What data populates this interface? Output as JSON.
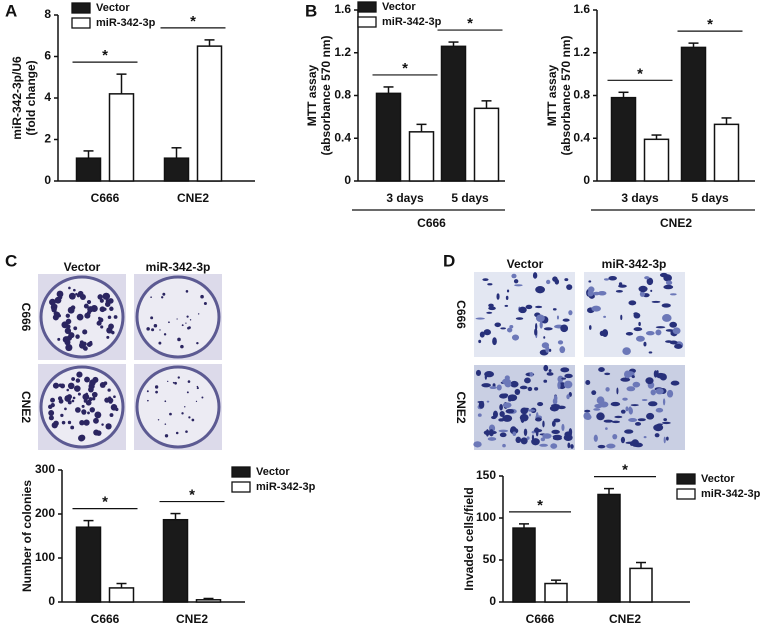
{
  "chart_data": [
    {
      "type": "bar",
      "panel_label": "A",
      "ylabel": [
        "miR-342-3p/U6",
        "(fold change)"
      ],
      "categories": [
        "C666",
        "CNE2"
      ],
      "series": [
        {
          "name": "Vector",
          "color": "#1a1a1a",
          "values": [
            1.1,
            1.1
          ],
          "errors": [
            0.35,
            0.5
          ]
        },
        {
          "name": "miR-342-3p",
          "color": "#ffffff",
          "values": [
            4.2,
            6.5
          ],
          "errors": [
            0.95,
            0.3
          ]
        }
      ],
      "ylim": [
        0,
        8
      ],
      "yticks": [
        0,
        2,
        4,
        6,
        8
      ],
      "legend": "upper left",
      "annotations": [
        "*",
        "*"
      ]
    },
    {
      "type": "bar",
      "panel_label": "B",
      "ylabel": [
        "MTT assay",
        "(absorbance 570 nm)"
      ],
      "categories": [
        "3 days",
        "5 days"
      ],
      "group_label": "C666",
      "series": [
        {
          "name": "Vector",
          "color": "#1a1a1a",
          "values": [
            0.82,
            1.26
          ],
          "errors": [
            0.06,
            0.04
          ]
        },
        {
          "name": "miR-342-3p",
          "color": "#ffffff",
          "values": [
            0.46,
            0.68
          ],
          "errors": [
            0.07,
            0.07
          ]
        }
      ],
      "ylim": [
        0,
        1.6
      ],
      "yticks": [
        0,
        0.4,
        0.8,
        1.2,
        1.6
      ],
      "legend": "upper left",
      "annotations": [
        "*",
        "*"
      ]
    },
    {
      "type": "bar",
      "ylabel": [
        "MTT assay",
        "(absorbance 570 nm)"
      ],
      "categories": [
        "3 days",
        "5 days"
      ],
      "group_label": "CNE2",
      "series": [
        {
          "color": "#1a1a1a",
          "values": [
            0.78,
            1.25
          ],
          "errors": [
            0.05,
            0.04
          ]
        },
        {
          "color": "#ffffff",
          "values": [
            0.39,
            0.53
          ],
          "errors": [
            0.04,
            0.06
          ]
        }
      ],
      "ylim": [
        0,
        1.6
      ],
      "yticks": [
        0,
        0.4,
        0.8,
        1.2,
        1.6
      ],
      "annotations": [
        "*",
        "*"
      ]
    },
    {
      "type": "bar",
      "ylabel": [
        "Number of colonies"
      ],
      "categories": [
        "C666",
        "CNE2"
      ],
      "series": [
        {
          "name": "Vector",
          "color": "#1a1a1a",
          "values": [
            170,
            187
          ],
          "errors": [
            15,
            14
          ]
        },
        {
          "name": "miR-342-3p",
          "color": "#ffffff",
          "values": [
            32,
            5
          ],
          "errors": [
            10,
            3
          ]
        }
      ],
      "ylim": [
        0,
        300
      ],
      "yticks": [
        0,
        100,
        200,
        300
      ],
      "legend": "upper right",
      "annotations": [
        "*",
        "*"
      ]
    },
    {
      "type": "bar",
      "ylabel": [
        "Invaded cells/field"
      ],
      "categories": [
        "C666",
        "CNE2"
      ],
      "series": [
        {
          "name": "Vector",
          "color": "#1a1a1a",
          "values": [
            88,
            128
          ],
          "errors": [
            5,
            7
          ]
        },
        {
          "name": "miR-342-3p",
          "color": "#ffffff",
          "values": [
            22,
            40
          ],
          "errors": [
            4,
            7
          ]
        }
      ],
      "ylim": [
        0,
        150
      ],
      "yticks": [
        0,
        50,
        100,
        150
      ],
      "legend": "upper right",
      "annotations": [
        "*",
        "*"
      ]
    }
  ],
  "image_panels": [
    {
      "label": "C",
      "columns": [
        "Vector",
        "miR-342-3p"
      ],
      "rows": [
        "C666",
        "CNE2"
      ]
    },
    {
      "label": "D",
      "columns": [
        "Vector",
        "miR-342-3p"
      ],
      "rows": [
        "C666",
        "CNE2"
      ]
    }
  ]
}
